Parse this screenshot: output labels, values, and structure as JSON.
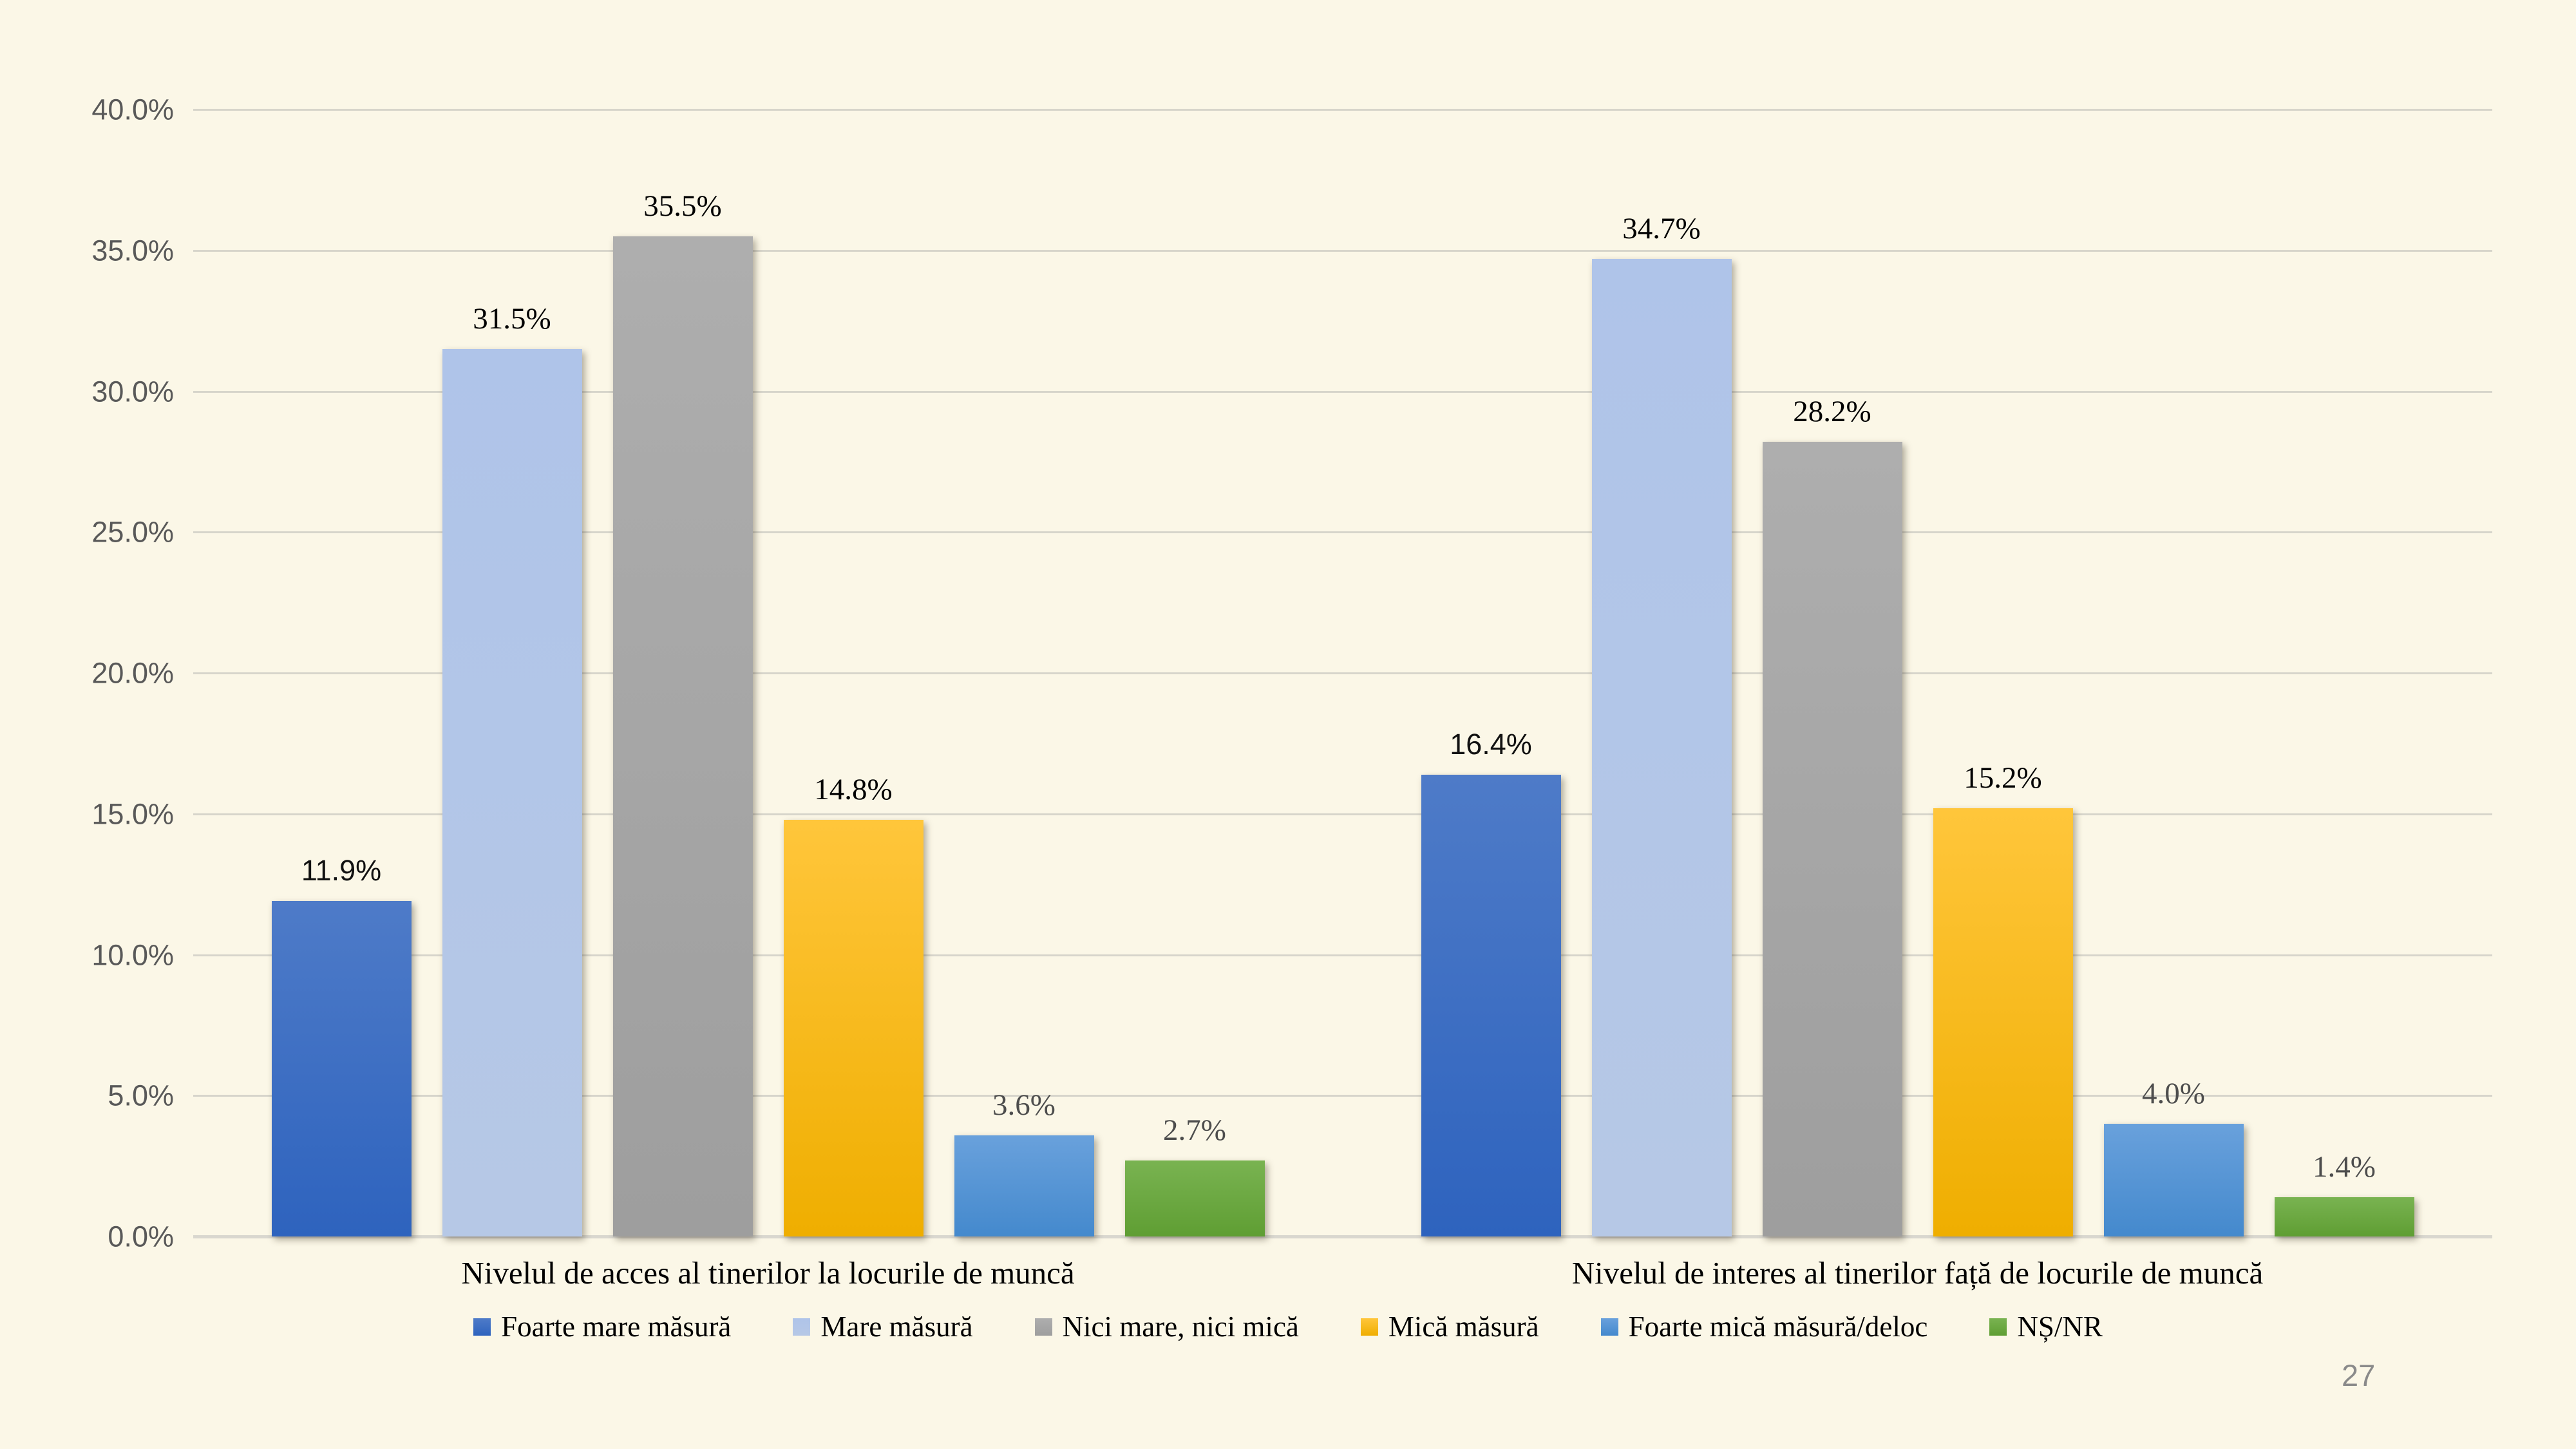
{
  "page_number": "27",
  "colors": {
    "background": "#FBF7E7",
    "gridline": "#D7D5CB",
    "baseline": "#D9D7CF",
    "axis_text": "#595959",
    "page_number_text": "#8A8A8A"
  },
  "chart_data": {
    "type": "bar",
    "title": "",
    "xlabel": "",
    "ylabel": "",
    "categories": [
      "Nivelul de acces al tinerilor la locurile de muncă",
      "Nivelul de interes al tinerilor față de locurile de muncă"
    ],
    "series": [
      {
        "name": "Foarte mare măsură",
        "color_top": "#4E7BC8",
        "color_bottom": "#2E63BE",
        "values": [
          11.9,
          16.4
        ]
      },
      {
        "name": "Mare măsură",
        "color_top": "#AFC4E9",
        "color_bottom": "#B6C8E6",
        "values": [
          31.5,
          34.7
        ]
      },
      {
        "name": "Nici mare, nici mică",
        "color_top": "#AEAEAE",
        "color_bottom": "#9E9E9E",
        "values": [
          35.5,
          28.2
        ]
      },
      {
        "name": "Mică măsură",
        "color_top": "#FFC63B",
        "color_bottom": "#EFAE00",
        "values": [
          14.8,
          15.2
        ]
      },
      {
        "name": "Foarte mică măsură/deloc",
        "color_top": "#69A1DC",
        "color_bottom": "#4489CD",
        "values": [
          3.6,
          4.0
        ]
      },
      {
        "name": "NȘ/NR",
        "color_top": "#79B351",
        "color_bottom": "#5F9E33",
        "values": [
          2.7,
          1.4
        ]
      }
    ],
    "ylim": [
      0,
      40
    ],
    "yticks": [
      0,
      5,
      10,
      15,
      20,
      25,
      30,
      35,
      40
    ],
    "ytick_labels": [
      "0.0%",
      "5.0%",
      "10.0%",
      "15.0%",
      "20.0%",
      "25.0%",
      "30.0%",
      "35.0%",
      "40.0%"
    ],
    "grid": true,
    "legend_position": "bottom",
    "value_label_format": "one-decimal-percent"
  }
}
